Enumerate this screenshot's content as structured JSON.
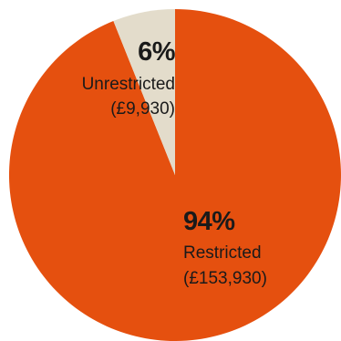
{
  "chart_data": {
    "type": "pie",
    "title": "",
    "slices": [
      {
        "label": "Restricted",
        "percent_label": "94%",
        "amount_label": "(£153,930)",
        "value": 153930,
        "color": "#E5500F"
      },
      {
        "label": "Unrestricted",
        "percent_label": "6%",
        "amount_label": "(£9,930)",
        "value": 9930,
        "color": "#E3DCCB"
      }
    ],
    "start_angle_deg": 0,
    "direction": "clockwise",
    "legend": "none",
    "text_color": "#1a1a1a"
  }
}
